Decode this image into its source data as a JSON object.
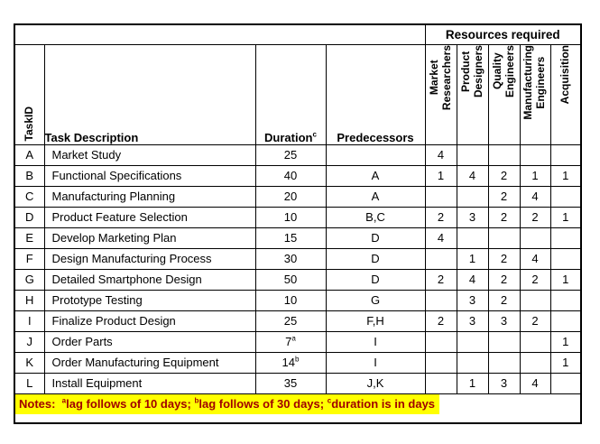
{
  "table": {
    "top_header": {
      "resources_required": "Resources required"
    },
    "columns": {
      "task_id": "TaskID",
      "task_description": "Task Description",
      "duration": {
        "label": "Duration",
        "sup": "c"
      },
      "predecessors": "Predecessors",
      "resources": [
        [
          "Market",
          "Researchers"
        ],
        [
          "Product",
          "Designers"
        ],
        [
          "Quality",
          "Engineers"
        ],
        [
          "Manufacturing",
          "Engineers"
        ],
        [
          "Acquisition"
        ]
      ]
    },
    "rows": [
      {
        "id": "A",
        "desc": "Market Study",
        "duration": "25",
        "dur_sup": "",
        "pred": "",
        "res": [
          "4",
          "",
          "",
          "",
          ""
        ]
      },
      {
        "id": "B",
        "desc": "Functional Specifications",
        "duration": "40",
        "dur_sup": "",
        "pred": "A",
        "res": [
          "1",
          "4",
          "2",
          "1",
          "1"
        ]
      },
      {
        "id": "C",
        "desc": "Manufacturing Planning",
        "duration": "20",
        "dur_sup": "",
        "pred": "A",
        "res": [
          "",
          "",
          "2",
          "4",
          ""
        ]
      },
      {
        "id": "D",
        "desc": "Product Feature Selection",
        "duration": "10",
        "dur_sup": "",
        "pred": "B,C",
        "res": [
          "2",
          "3",
          "2",
          "2",
          "1"
        ]
      },
      {
        "id": "E",
        "desc": "Develop Marketing Plan",
        "duration": "15",
        "dur_sup": "",
        "pred": "D",
        "res": [
          "4",
          "",
          "",
          "",
          ""
        ]
      },
      {
        "id": "F",
        "desc": "Design Manufacturing Process",
        "duration": "30",
        "dur_sup": "",
        "pred": "D",
        "res": [
          "",
          "1",
          "2",
          "4",
          ""
        ]
      },
      {
        "id": "G",
        "desc": "Detailed Smartphone Design",
        "duration": "50",
        "dur_sup": "",
        "pred": "D",
        "res": [
          "2",
          "4",
          "2",
          "2",
          "1"
        ]
      },
      {
        "id": "H",
        "desc": "Prototype Testing",
        "duration": "10",
        "dur_sup": "",
        "pred": "G",
        "res": [
          "",
          "3",
          "2",
          "",
          ""
        ]
      },
      {
        "id": "I",
        "desc": "Finalize Product Design",
        "duration": "25",
        "dur_sup": "",
        "pred": "F,H",
        "res": [
          "2",
          "3",
          "3",
          "2",
          ""
        ]
      },
      {
        "id": "J",
        "desc": "Order Parts",
        "duration": "7",
        "dur_sup": "a",
        "pred": "I",
        "res": [
          "",
          "",
          "",
          "",
          "1"
        ]
      },
      {
        "id": "K",
        "desc": "Order Manufacturing Equipment",
        "duration": "14",
        "dur_sup": "b",
        "pred": "I",
        "res": [
          "",
          "",
          "",
          "",
          "1"
        ]
      },
      {
        "id": "L",
        "desc": "Install Equipment",
        "duration": "35",
        "dur_sup": "",
        "pred": "J,K",
        "res": [
          "",
          "1",
          "3",
          "4",
          ""
        ]
      }
    ],
    "notes": {
      "segments": [
        {
          "sup": "",
          "text": "Notes:  "
        },
        {
          "sup": "a",
          "text": "lag follows of 10 days; "
        },
        {
          "sup": "b",
          "text": "lag follows of 30 days; "
        },
        {
          "sup": "c",
          "text": "duration is in days"
        }
      ],
      "highlight_color": "#FFFF00",
      "text_color": "#A00000"
    }
  }
}
